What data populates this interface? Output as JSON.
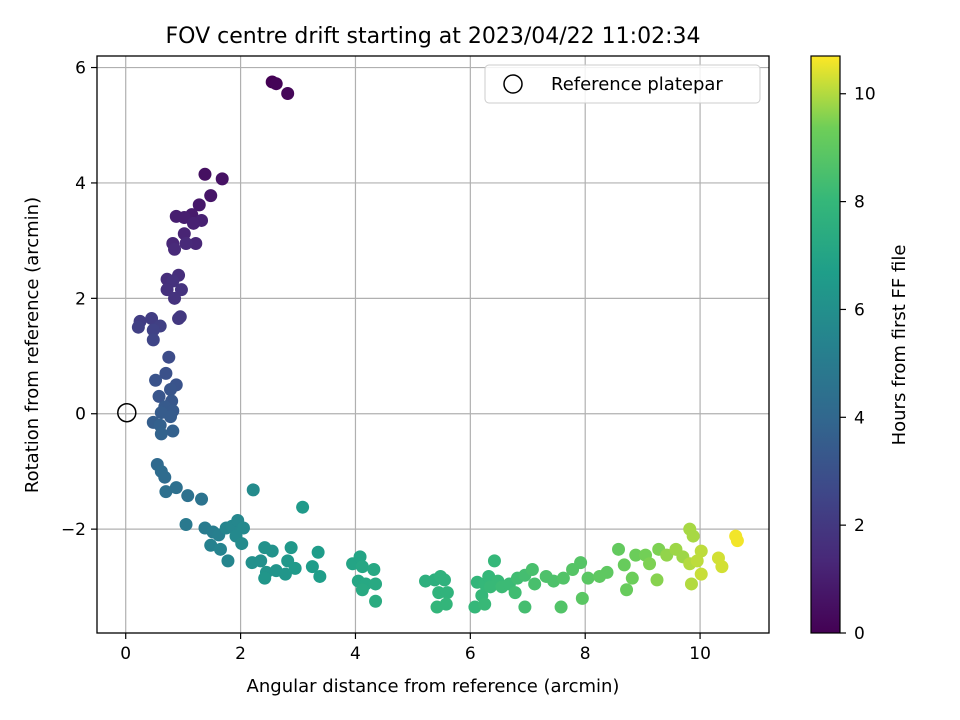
{
  "chart_data": {
    "type": "scatter",
    "title": "FOV centre drift starting at 2023/04/22 11:02:34",
    "xlabel": "Angular distance from reference (arcmin)",
    "ylabel": "Rotation from reference (arcmin)",
    "xlim": [
      -0.5,
      11.2
    ],
    "ylim": [
      -3.8,
      6.2
    ],
    "xticks": [
      0,
      2,
      4,
      6,
      8,
      10
    ],
    "yticks": [
      -2,
      0,
      2,
      4,
      6
    ],
    "xtick_labels": [
      "0",
      "2",
      "4",
      "6",
      "8",
      "10"
    ],
    "ytick_labels": [
      "−2",
      "0",
      "2",
      "4",
      "6"
    ],
    "grid": true,
    "legend": {
      "placement": "top-right",
      "entries": [
        "Reference platepar"
      ]
    },
    "reference_point": {
      "label": "Reference platepar",
      "x": 0.0,
      "y": 0.0
    },
    "colorbar": {
      "label": "Hours from first FF file",
      "range": [
        0,
        10.7
      ],
      "ticks": [
        0,
        2,
        4,
        6,
        8,
        10
      ],
      "tick_labels": [
        "0",
        "2",
        "4",
        "6",
        "8",
        "10"
      ],
      "colormap": "viridis"
    },
    "series": [
      {
        "color_by": "hours",
        "points": [
          {
            "x": 2.55,
            "y": 5.75,
            "h": 0.0
          },
          {
            "x": 2.62,
            "y": 5.72,
            "h": 0.1
          },
          {
            "x": 2.82,
            "y": 5.55,
            "h": 0.2
          },
          {
            "x": 1.38,
            "y": 4.15,
            "h": 0.5
          },
          {
            "x": 1.68,
            "y": 4.07,
            "h": 0.6
          },
          {
            "x": 1.48,
            "y": 3.78,
            "h": 0.7
          },
          {
            "x": 1.28,
            "y": 3.62,
            "h": 0.8
          },
          {
            "x": 1.15,
            "y": 3.45,
            "h": 0.9
          },
          {
            "x": 0.88,
            "y": 3.42,
            "h": 1.0
          },
          {
            "x": 1.02,
            "y": 3.4,
            "h": 1.0
          },
          {
            "x": 1.32,
            "y": 3.35,
            "h": 1.1
          },
          {
            "x": 1.18,
            "y": 3.3,
            "h": 1.1
          },
          {
            "x": 1.02,
            "y": 3.12,
            "h": 1.2
          },
          {
            "x": 1.22,
            "y": 2.95,
            "h": 1.3
          },
          {
            "x": 0.82,
            "y": 2.95,
            "h": 1.3
          },
          {
            "x": 1.05,
            "y": 2.95,
            "h": 1.4
          },
          {
            "x": 0.85,
            "y": 2.85,
            "h": 1.4
          },
          {
            "x": 0.92,
            "y": 2.4,
            "h": 1.6
          },
          {
            "x": 0.72,
            "y": 2.33,
            "h": 1.6
          },
          {
            "x": 0.82,
            "y": 2.3,
            "h": 1.7
          },
          {
            "x": 0.72,
            "y": 2.15,
            "h": 1.7
          },
          {
            "x": 0.97,
            "y": 2.15,
            "h": 1.8
          },
          {
            "x": 0.85,
            "y": 2.0,
            "h": 1.8
          },
          {
            "x": 0.95,
            "y": 1.68,
            "h": 2.0
          },
          {
            "x": 0.92,
            "y": 1.65,
            "h": 2.0
          },
          {
            "x": 0.25,
            "y": 1.6,
            "h": 2.2
          },
          {
            "x": 0.45,
            "y": 1.65,
            "h": 2.2
          },
          {
            "x": 0.6,
            "y": 1.52,
            "h": 2.3
          },
          {
            "x": 0.22,
            "y": 1.5,
            "h": 2.3
          },
          {
            "x": 0.48,
            "y": 1.45,
            "h": 2.4
          },
          {
            "x": 0.48,
            "y": 1.28,
            "h": 2.5
          },
          {
            "x": 0.75,
            "y": 0.98,
            "h": 2.8
          },
          {
            "x": 0.7,
            "y": 0.7,
            "h": 3.0
          },
          {
            "x": 0.52,
            "y": 0.58,
            "h": 3.1
          },
          {
            "x": 0.88,
            "y": 0.5,
            "h": 3.1
          },
          {
            "x": 0.78,
            "y": 0.42,
            "h": 3.2
          },
          {
            "x": 0.58,
            "y": 0.3,
            "h": 3.2
          },
          {
            "x": 0.8,
            "y": 0.22,
            "h": 3.3
          },
          {
            "x": 0.68,
            "y": 0.12,
            "h": 3.4
          },
          {
            "x": 0.82,
            "y": 0.05,
            "h": 3.4
          },
          {
            "x": 0.62,
            "y": 0.02,
            "h": 3.5
          },
          {
            "x": 0.78,
            "y": -0.05,
            "h": 3.5
          },
          {
            "x": 0.48,
            "y": -0.15,
            "h": 3.6
          },
          {
            "x": 0.6,
            "y": -0.2,
            "h": 3.7
          },
          {
            "x": 0.82,
            "y": -0.3,
            "h": 3.7
          },
          {
            "x": 0.62,
            "y": -0.35,
            "h": 3.8
          },
          {
            "x": 0.55,
            "y": -0.88,
            "h": 4.1
          },
          {
            "x": 0.62,
            "y": -1.0,
            "h": 4.2
          },
          {
            "x": 0.68,
            "y": -1.1,
            "h": 4.2
          },
          {
            "x": 0.88,
            "y": -1.28,
            "h": 4.4
          },
          {
            "x": 0.7,
            "y": -1.35,
            "h": 4.4
          },
          {
            "x": 1.08,
            "y": -1.42,
            "h": 4.5
          },
          {
            "x": 1.32,
            "y": -1.48,
            "h": 4.6
          },
          {
            "x": 1.05,
            "y": -1.92,
            "h": 4.9
          },
          {
            "x": 1.38,
            "y": -1.98,
            "h": 5.0
          },
          {
            "x": 1.52,
            "y": -2.05,
            "h": 5.1
          },
          {
            "x": 1.62,
            "y": -2.1,
            "h": 5.2
          },
          {
            "x": 1.48,
            "y": -2.28,
            "h": 5.3
          },
          {
            "x": 1.65,
            "y": -2.35,
            "h": 5.4
          },
          {
            "x": 1.78,
            "y": -2.55,
            "h": 5.5
          },
          {
            "x": 1.75,
            "y": -1.98,
            "h": 5.5
          },
          {
            "x": 1.85,
            "y": -1.95,
            "h": 5.6
          },
          {
            "x": 1.95,
            "y": -1.85,
            "h": 5.6
          },
          {
            "x": 2.05,
            "y": -1.98,
            "h": 5.7
          },
          {
            "x": 1.92,
            "y": -2.12,
            "h": 5.7
          },
          {
            "x": 2.22,
            "y": -1.32,
            "h": 5.8
          },
          {
            "x": 2.02,
            "y": -2.25,
            "h": 5.8
          },
          {
            "x": 2.2,
            "y": -2.58,
            "h": 6.0
          },
          {
            "x": 2.35,
            "y": -2.55,
            "h": 6.0
          },
          {
            "x": 2.42,
            "y": -2.32,
            "h": 6.1
          },
          {
            "x": 2.55,
            "y": -2.38,
            "h": 6.1
          },
          {
            "x": 2.45,
            "y": -2.75,
            "h": 6.2
          },
          {
            "x": 2.62,
            "y": -2.72,
            "h": 6.2
          },
          {
            "x": 2.42,
            "y": -2.85,
            "h": 6.3
          },
          {
            "x": 2.78,
            "y": -2.78,
            "h": 6.3
          },
          {
            "x": 2.88,
            "y": -2.32,
            "h": 6.4
          },
          {
            "x": 2.82,
            "y": -2.55,
            "h": 6.4
          },
          {
            "x": 2.95,
            "y": -2.68,
            "h": 6.5
          },
          {
            "x": 3.08,
            "y": -1.62,
            "h": 6.5
          },
          {
            "x": 3.25,
            "y": -2.65,
            "h": 6.6
          },
          {
            "x": 3.35,
            "y": -2.4,
            "h": 6.6
          },
          {
            "x": 3.38,
            "y": -2.82,
            "h": 6.7
          },
          {
            "x": 3.95,
            "y": -2.6,
            "h": 7.0
          },
          {
            "x": 4.08,
            "y": -2.48,
            "h": 7.0
          },
          {
            "x": 4.12,
            "y": -2.65,
            "h": 7.1
          },
          {
            "x": 4.05,
            "y": -2.9,
            "h": 7.1
          },
          {
            "x": 4.18,
            "y": -2.95,
            "h": 7.2
          },
          {
            "x": 4.32,
            "y": -2.7,
            "h": 7.2
          },
          {
            "x": 4.35,
            "y": -2.95,
            "h": 7.3
          },
          {
            "x": 4.12,
            "y": -3.05,
            "h": 7.3
          },
          {
            "x": 4.35,
            "y": -3.25,
            "h": 7.4
          },
          {
            "x": 5.22,
            "y": -2.9,
            "h": 7.6
          },
          {
            "x": 5.38,
            "y": -2.88,
            "h": 7.6
          },
          {
            "x": 5.48,
            "y": -2.82,
            "h": 7.7
          },
          {
            "x": 5.55,
            "y": -2.88,
            "h": 7.7
          },
          {
            "x": 5.45,
            "y": -3.1,
            "h": 7.8
          },
          {
            "x": 5.6,
            "y": -3.1,
            "h": 7.8
          },
          {
            "x": 5.42,
            "y": -3.35,
            "h": 7.9
          },
          {
            "x": 5.58,
            "y": -3.3,
            "h": 7.9
          },
          {
            "x": 6.12,
            "y": -2.92,
            "h": 7.9
          },
          {
            "x": 6.25,
            "y": -2.95,
            "h": 8.0
          },
          {
            "x": 6.32,
            "y": -2.82,
            "h": 8.0
          },
          {
            "x": 6.42,
            "y": -2.55,
            "h": 8.0
          },
          {
            "x": 6.48,
            "y": -2.9,
            "h": 8.1
          },
          {
            "x": 6.2,
            "y": -3.15,
            "h": 8.0
          },
          {
            "x": 6.08,
            "y": -3.35,
            "h": 8.0
          },
          {
            "x": 6.25,
            "y": -3.3,
            "h": 8.1
          },
          {
            "x": 6.35,
            "y": -3.0,
            "h": 8.1
          },
          {
            "x": 6.55,
            "y": -3.0,
            "h": 8.2
          },
          {
            "x": 6.68,
            "y": -2.95,
            "h": 8.2
          },
          {
            "x": 6.82,
            "y": -2.85,
            "h": 8.3
          },
          {
            "x": 6.78,
            "y": -3.1,
            "h": 8.3
          },
          {
            "x": 6.95,
            "y": -3.35,
            "h": 8.4
          },
          {
            "x": 6.95,
            "y": -2.8,
            "h": 8.4
          },
          {
            "x": 7.08,
            "y": -2.7,
            "h": 8.5
          },
          {
            "x": 7.12,
            "y": -2.95,
            "h": 8.5
          },
          {
            "x": 7.32,
            "y": -2.82,
            "h": 8.6
          },
          {
            "x": 7.45,
            "y": -2.9,
            "h": 8.6
          },
          {
            "x": 7.58,
            "y": -3.35,
            "h": 8.7
          },
          {
            "x": 7.62,
            "y": -2.85,
            "h": 8.7
          },
          {
            "x": 7.78,
            "y": -2.7,
            "h": 8.8
          },
          {
            "x": 7.92,
            "y": -2.58,
            "h": 8.8
          },
          {
            "x": 7.95,
            "y": -3.2,
            "h": 8.9
          },
          {
            "x": 8.05,
            "y": -2.85,
            "h": 8.9
          },
          {
            "x": 8.25,
            "y": -2.82,
            "h": 9.0
          },
          {
            "x": 8.38,
            "y": -2.75,
            "h": 9.0
          },
          {
            "x": 8.58,
            "y": -2.35,
            "h": 9.1
          },
          {
            "x": 8.68,
            "y": -2.62,
            "h": 9.2
          },
          {
            "x": 8.72,
            "y": -3.05,
            "h": 9.2
          },
          {
            "x": 8.82,
            "y": -2.85,
            "h": 9.3
          },
          {
            "x": 8.88,
            "y": -2.45,
            "h": 9.3
          },
          {
            "x": 9.05,
            "y": -2.45,
            "h": 9.4
          },
          {
            "x": 9.12,
            "y": -2.6,
            "h": 9.5
          },
          {
            "x": 9.28,
            "y": -2.35,
            "h": 9.5
          },
          {
            "x": 9.25,
            "y": -2.88,
            "h": 9.6
          },
          {
            "x": 9.42,
            "y": -2.45,
            "h": 9.7
          },
          {
            "x": 9.58,
            "y": -2.35,
            "h": 9.8
          },
          {
            "x": 9.7,
            "y": -2.48,
            "h": 9.8
          },
          {
            "x": 9.82,
            "y": -2.0,
            "h": 9.9
          },
          {
            "x": 9.88,
            "y": -2.12,
            "h": 9.9
          },
          {
            "x": 9.82,
            "y": -2.6,
            "h": 10.0
          },
          {
            "x": 9.85,
            "y": -2.95,
            "h": 10.0
          },
          {
            "x": 9.95,
            "y": -2.55,
            "h": 10.1
          },
          {
            "x": 10.02,
            "y": -2.38,
            "h": 10.1
          },
          {
            "x": 10.02,
            "y": -2.78,
            "h": 10.2
          },
          {
            "x": 10.32,
            "y": -2.5,
            "h": 10.3
          },
          {
            "x": 10.38,
            "y": -2.65,
            "h": 10.3
          },
          {
            "x": 10.62,
            "y": -2.12,
            "h": 10.6
          },
          {
            "x": 10.65,
            "y": -2.2,
            "h": 10.6
          }
        ]
      }
    ]
  }
}
